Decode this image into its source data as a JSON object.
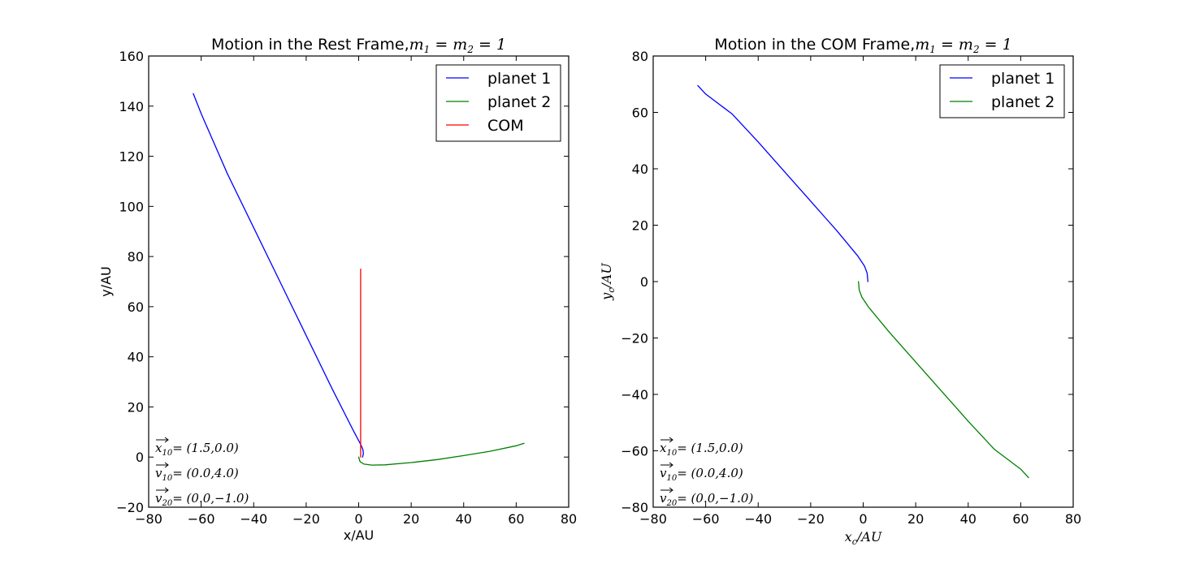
{
  "chart_data": [
    {
      "type": "line",
      "title": "Motion in the Rest Frame,",
      "title_math": "m1 = m2 = 1",
      "xlabel": "x/AU",
      "ylabel": "y/AU",
      "xlim": [
        -80,
        80
      ],
      "ylim": [
        -20,
        160
      ],
      "xticks": [
        -80,
        -60,
        -40,
        -20,
        0,
        20,
        40,
        60,
        80
      ],
      "yticks": [
        -20,
        0,
        20,
        40,
        60,
        80,
        100,
        120,
        140,
        160
      ],
      "xtick_labels": [
        "−80",
        "−60",
        "−40",
        "−20",
        "0",
        "20",
        "40",
        "60",
        "80"
      ],
      "ytick_labels": [
        "−20",
        "0",
        "20",
        "40",
        "60",
        "80",
        "100",
        "120",
        "140",
        "160"
      ],
      "grid": false,
      "legend_position": "top-right",
      "series": [
        {
          "name": "planet 1",
          "color": "#0000ff",
          "x": [
            1.5,
            1.8,
            1.6,
            0.8,
            -2,
            -10,
            -20,
            -30,
            -40,
            -50,
            -60,
            -63
          ],
          "y": [
            0,
            1.5,
            3,
            5,
            10.5,
            27,
            48.5,
            70,
            91.5,
            113,
            137,
            145
          ]
        },
        {
          "name": "planet 2",
          "color": "#008000",
          "x": [
            0,
            0.5,
            2,
            5,
            10,
            20,
            30,
            40,
            50,
            60,
            63
          ],
          "y": [
            0,
            -1.8,
            -2.8,
            -3.2,
            -3.1,
            -2.2,
            -1,
            0.6,
            2.3,
            4.5,
            5.5
          ]
        },
        {
          "name": "COM",
          "color": "#ff0000",
          "x": [
            0.75,
            0.75
          ],
          "y": [
            0,
            75
          ]
        }
      ],
      "annotations": [
        "x10 = (1.5,0.0)",
        "v10 = (0.0,4.0)",
        "v20 = (0.0,−1.0)"
      ]
    },
    {
      "type": "line",
      "title": "Motion in the COM Frame,",
      "title_math": "m1 = m2 = 1",
      "xlabel": "xc/AU",
      "ylabel": "yc/AU",
      "xlim": [
        -80,
        80
      ],
      "ylim": [
        -80,
        80
      ],
      "xticks": [
        -80,
        -60,
        -40,
        -20,
        0,
        20,
        40,
        60,
        80
      ],
      "yticks": [
        -80,
        -60,
        -40,
        -20,
        0,
        20,
        40,
        60,
        80
      ],
      "xtick_labels": [
        "−80",
        "−60",
        "−40",
        "−20",
        "0",
        "20",
        "40",
        "60",
        "80"
      ],
      "ytick_labels": [
        "−80",
        "−60",
        "−40",
        "−20",
        "0",
        "20",
        "40",
        "60",
        "80"
      ],
      "grid": false,
      "legend_position": "top-right",
      "series": [
        {
          "name": "planet 1",
          "color": "#0000ff",
          "x": [
            1.8,
            1.5,
            0.5,
            -2,
            -10,
            -20,
            -30,
            -40,
            -50,
            -60,
            -63
          ],
          "y": [
            0,
            3,
            5.5,
            9,
            18,
            28.5,
            39,
            49.5,
            59.5,
            66.5,
            69.5
          ]
        },
        {
          "name": "planet 2",
          "color": "#008000",
          "x": [
            -1.8,
            -1.5,
            -0.5,
            2,
            10,
            20,
            30,
            40,
            50,
            60,
            63
          ],
          "y": [
            0,
            -3,
            -5.5,
            -9,
            -18,
            -28.5,
            -39,
            -49.5,
            -59.5,
            -66.5,
            -69.5
          ]
        }
      ],
      "annotations": [
        "x10 = (1.5,0.0)",
        "v10 = (0.0,4.0)",
        "v20 = (0.0,−1.0)"
      ]
    }
  ]
}
